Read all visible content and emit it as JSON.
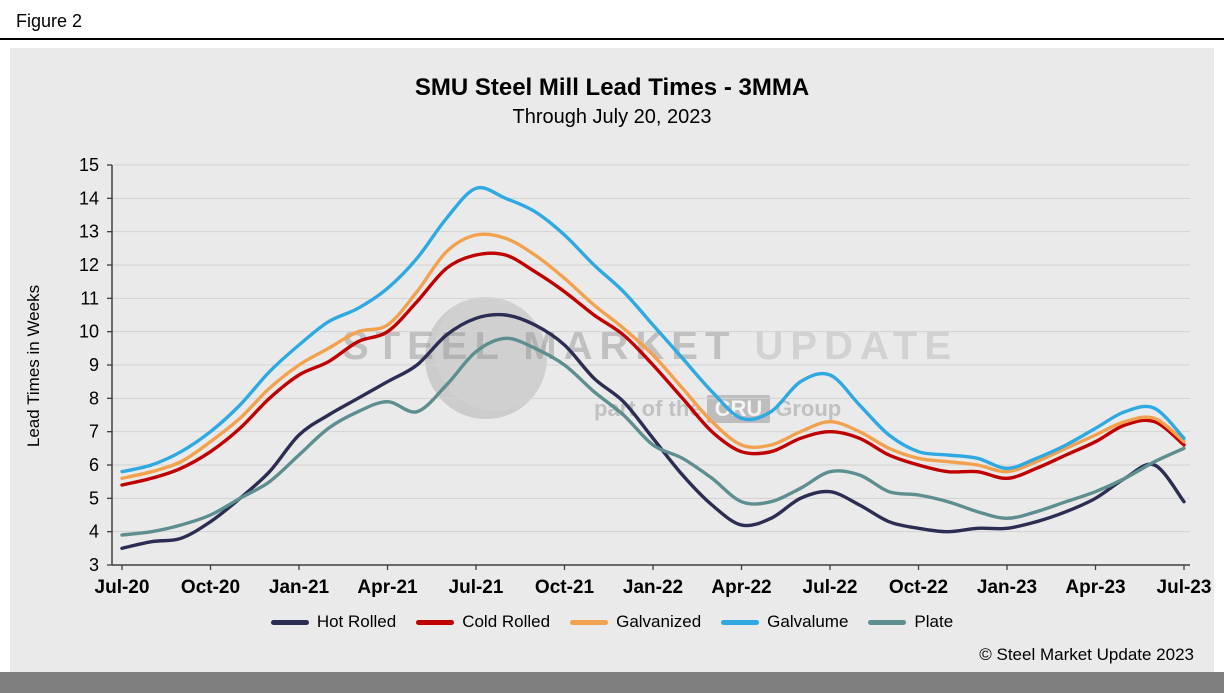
{
  "figure_label": "Figure 2",
  "copyright": "© Steel Market Update 2023",
  "watermark": {
    "line1": "STEEL MARKET",
    "line1b": "UPDATE",
    "line2_prefix": "part of the",
    "line2_brand": "CRU",
    "line2_suffix": "Group"
  },
  "colors": {
    "panel_bg": "#eaeaea",
    "gridline": "#d2d2d2",
    "axis": "#3f3f3f",
    "bottom_bar": "#7f7f7f"
  },
  "chart_data": {
    "type": "line",
    "title": "SMU Steel Mill Lead Times - 3MMA",
    "subtitle": "Through July 20, 2023",
    "xlabel": "",
    "ylabel": "Lead Times in Weeks",
    "ylim": [
      3,
      15
    ],
    "ytick_step": 1,
    "grid": true,
    "legend_position": "bottom",
    "x_tick_labels": [
      "Jul-20",
      "Oct-20",
      "Jan-21",
      "Apr-21",
      "Jul-21",
      "Oct-21",
      "Jan-22",
      "Apr-22",
      "Jul-22",
      "Oct-22",
      "Jan-23",
      "Apr-23",
      "Jul-23"
    ],
    "x": [
      "Jul-20",
      "Aug-20",
      "Sep-20",
      "Oct-20",
      "Nov-20",
      "Dec-20",
      "Jan-21",
      "Feb-21",
      "Mar-21",
      "Apr-21",
      "May-21",
      "Jun-21",
      "Jul-21",
      "Aug-21",
      "Sep-21",
      "Oct-21",
      "Nov-21",
      "Dec-21",
      "Jan-22",
      "Feb-22",
      "Mar-22",
      "Apr-22",
      "May-22",
      "Jun-22",
      "Jul-22",
      "Aug-22",
      "Sep-22",
      "Oct-22",
      "Nov-22",
      "Dec-22",
      "Jan-23",
      "Feb-23",
      "Mar-23",
      "Apr-23",
      "May-23",
      "Jun-23",
      "Jul-23"
    ],
    "series": [
      {
        "name": "Hot Rolled",
        "color": "#2B2D52",
        "values": [
          3.5,
          3.7,
          3.8,
          4.3,
          5.0,
          5.8,
          6.9,
          7.5,
          8.0,
          8.5,
          9.0,
          9.9,
          10.4,
          10.5,
          10.2,
          9.6,
          8.6,
          7.9,
          6.8,
          5.7,
          4.8,
          4.2,
          4.4,
          5.0,
          5.2,
          4.8,
          4.3,
          4.1,
          4.0,
          4.1,
          4.1,
          4.3,
          4.6,
          5.0,
          5.6,
          6.0,
          4.9
        ]
      },
      {
        "name": "Cold Rolled",
        "color": "#C00000",
        "values": [
          5.4,
          5.6,
          5.9,
          6.4,
          7.1,
          8.0,
          8.7,
          9.1,
          9.7,
          10.0,
          10.9,
          11.9,
          12.3,
          12.3,
          11.8,
          11.2,
          10.5,
          9.9,
          9.0,
          8.0,
          7.0,
          6.4,
          6.4,
          6.8,
          7.0,
          6.8,
          6.3,
          6.0,
          5.8,
          5.8,
          5.6,
          5.9,
          6.3,
          6.7,
          7.2,
          7.3,
          6.6
        ]
      },
      {
        "name": "Galvanized",
        "color": "#F2A24E",
        "values": [
          5.6,
          5.8,
          6.1,
          6.7,
          7.4,
          8.3,
          9.0,
          9.5,
          10.0,
          10.2,
          11.2,
          12.4,
          12.9,
          12.8,
          12.3,
          11.6,
          10.8,
          10.1,
          9.3,
          8.3,
          7.3,
          6.6,
          6.6,
          7.0,
          7.3,
          7.0,
          6.5,
          6.2,
          6.1,
          6.0,
          5.8,
          6.1,
          6.5,
          6.9,
          7.3,
          7.4,
          6.7
        ]
      },
      {
        "name": "Galvalume",
        "color": "#2EA9E1",
        "values": [
          5.8,
          6.0,
          6.4,
          7.0,
          7.8,
          8.8,
          9.6,
          10.3,
          10.7,
          11.3,
          12.2,
          13.4,
          14.3,
          14.0,
          13.6,
          12.9,
          12.0,
          11.2,
          10.2,
          9.2,
          8.2,
          7.4,
          7.6,
          8.5,
          8.7,
          7.8,
          6.9,
          6.4,
          6.3,
          6.2,
          5.9,
          6.2,
          6.6,
          7.1,
          7.6,
          7.7,
          6.8
        ]
      },
      {
        "name": "Plate",
        "color": "#5E8E90",
        "values": [
          3.9,
          4.0,
          4.2,
          4.5,
          5.0,
          5.5,
          6.3,
          7.1,
          7.6,
          7.9,
          7.6,
          8.4,
          9.4,
          9.8,
          9.5,
          9.0,
          8.2,
          7.5,
          6.6,
          6.2,
          5.6,
          4.9,
          4.9,
          5.3,
          5.8,
          5.7,
          5.2,
          5.1,
          4.9,
          4.6,
          4.4,
          4.6,
          4.9,
          5.2,
          5.6,
          6.1,
          6.5
        ]
      }
    ]
  }
}
